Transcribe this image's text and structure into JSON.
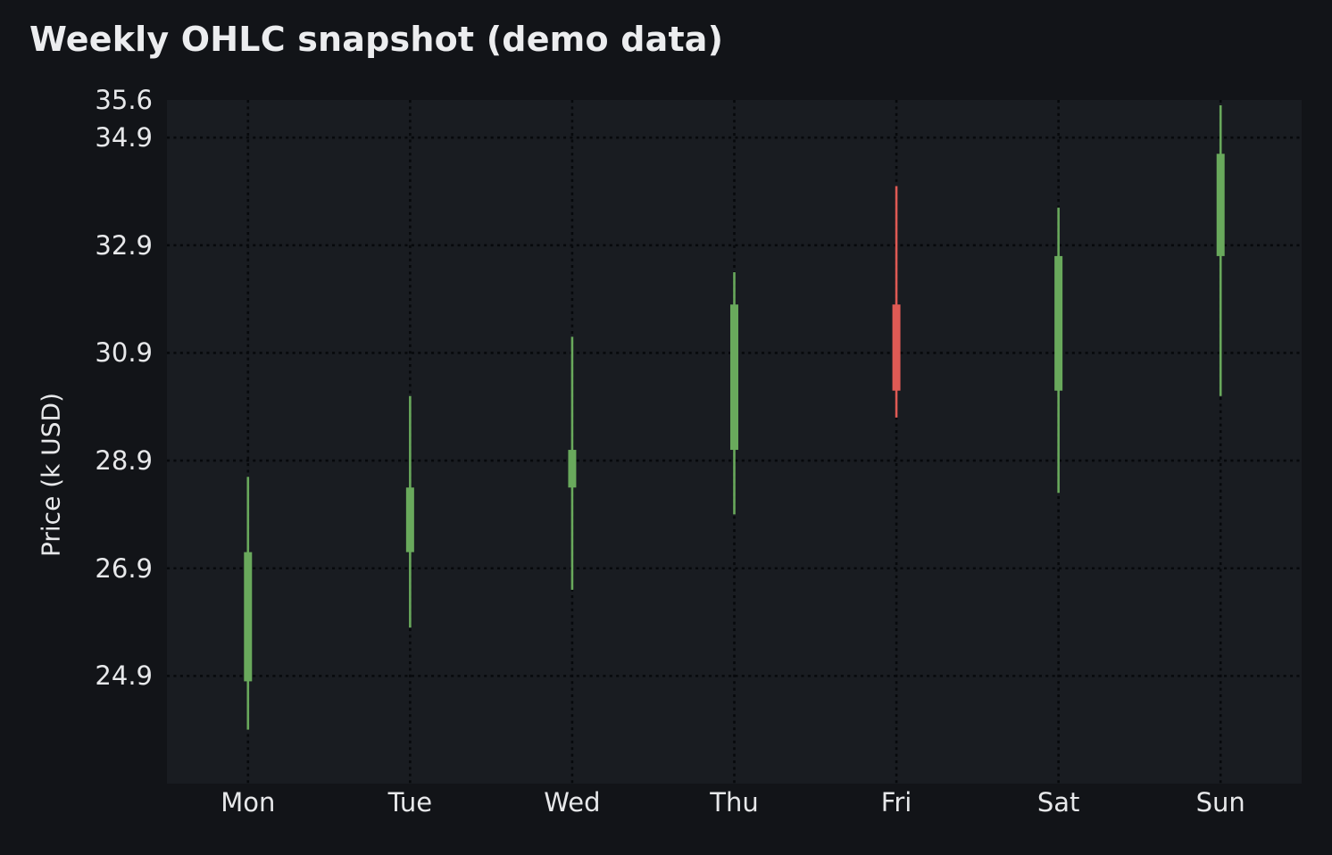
{
  "page": {
    "background": "#121418"
  },
  "chart_data": {
    "type": "candlestick",
    "title": "Weekly OHLC snapshot (demo data)",
    "xlabel": "",
    "ylabel": "Price (k USD)",
    "categories": [
      "Mon",
      "Tue",
      "Wed",
      "Thu",
      "Fri",
      "Sat",
      "Sun"
    ],
    "series": [
      {
        "name": "OHLC",
        "points": [
          {
            "day": "Mon",
            "open": 24.8,
            "high": 28.6,
            "low": 23.9,
            "close": 27.2,
            "direction": "up"
          },
          {
            "day": "Tue",
            "open": 27.2,
            "high": 30.1,
            "low": 25.8,
            "close": 28.4,
            "direction": "up"
          },
          {
            "day": "Wed",
            "open": 28.4,
            "high": 31.2,
            "low": 26.5,
            "close": 29.1,
            "direction": "up"
          },
          {
            "day": "Thu",
            "open": 29.1,
            "high": 32.4,
            "low": 27.9,
            "close": 31.8,
            "direction": "up"
          },
          {
            "day": "Fri",
            "open": 31.8,
            "high": 34.0,
            "low": 29.7,
            "close": 30.2,
            "direction": "down"
          },
          {
            "day": "Sat",
            "open": 30.2,
            "high": 33.6,
            "low": 28.3,
            "close": 32.7,
            "direction": "up"
          },
          {
            "day": "Sun",
            "open": 32.7,
            "high": 35.5,
            "low": 30.1,
            "close": 34.6,
            "direction": "up"
          }
        ]
      }
    ],
    "ylim": [
      22.9,
      35.6
    ],
    "yticks": [
      35.6,
      34.9,
      32.9,
      30.9,
      28.9,
      26.9,
      24.9
    ],
    "grid": {
      "visible": true,
      "axes": "both",
      "style": "dotted",
      "color": "#07090c"
    },
    "legend": "none",
    "colors": {
      "up": "#69a95c",
      "down": "#df5a54",
      "plot_background": "#191c21",
      "figure_background": "#121418",
      "text": "#e7e8ea"
    }
  }
}
